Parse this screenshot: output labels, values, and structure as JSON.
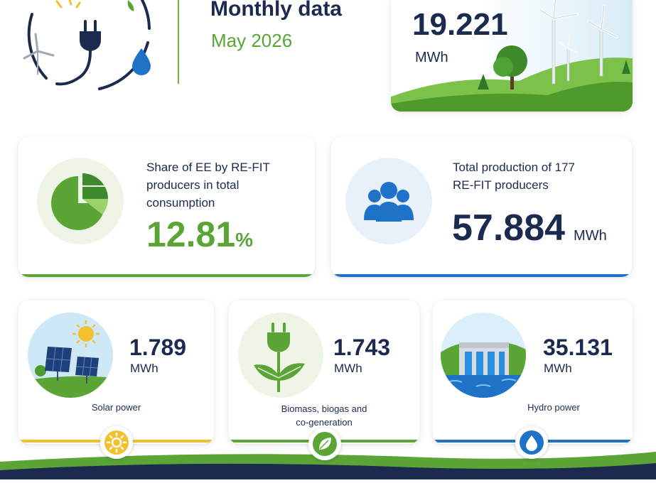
{
  "header": {
    "title": "Monthly data",
    "subtitle": "May 2026"
  },
  "wind": {
    "value": "19.221",
    "unit": "MWh"
  },
  "share": {
    "label": "Share of EE by RE-FIT producers in total consumption",
    "value": "12.81",
    "unit": "%"
  },
  "total": {
    "label": "Total production of 177 RE-FIT producers",
    "value": "57.884",
    "unit": "MWh"
  },
  "sources": [
    {
      "value": "1.789",
      "unit": "MWh",
      "label": "Solar power"
    },
    {
      "value": "1.743",
      "unit": "MWh",
      "label": "Biomass, biogas and co-generation"
    },
    {
      "value": "35.131",
      "unit": "MWh",
      "label": "Hydro power"
    }
  ],
  "colors": {
    "navy": "#1b2a4e",
    "green": "#5aa536",
    "blue": "#1e73c8",
    "yellow": "#f2c12e"
  },
  "icons": [
    "plug-icon",
    "sun-icon",
    "wind-turbine-icon",
    "water-drop-icon",
    "pie-chart-icon",
    "people-icon",
    "solar-panel-icon",
    "plant-plug-icon",
    "dam-icon",
    "leaf-icon"
  ]
}
